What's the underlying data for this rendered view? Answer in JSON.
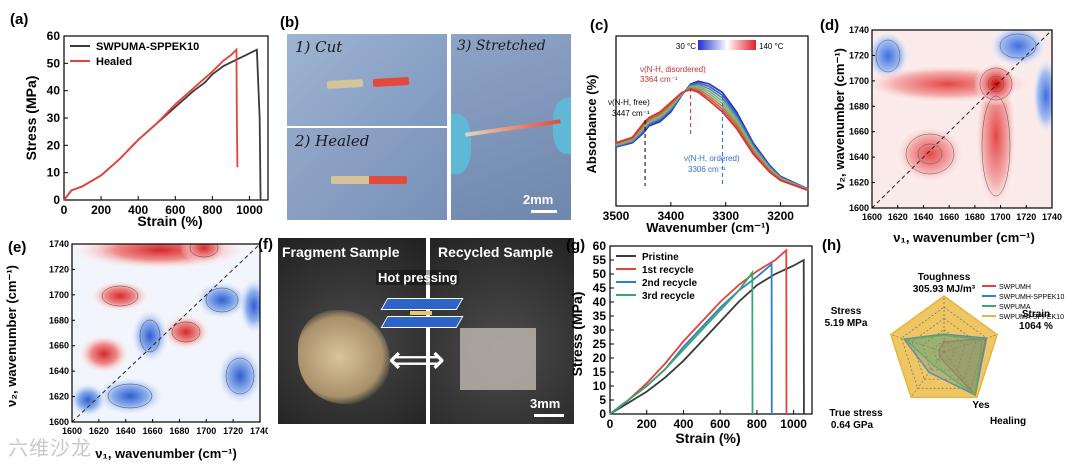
{
  "figure": {
    "panel_labels": [
      "(a)",
      "(b)",
      "(c)",
      "(d)",
      "(e)",
      "(f)",
      "(g)",
      "(h)"
    ],
    "watermark": "六维沙龙"
  },
  "panel_a": {
    "chart_data": {
      "type": "line",
      "xlabel": "Strain (%)",
      "ylabel": "Stress (MPa)",
      "xlim": [
        0,
        1100
      ],
      "ylim": [
        0,
        60
      ],
      "xticks": [
        "0",
        "200",
        "400",
        "600",
        "800",
        "1000"
      ],
      "yticks": [
        "0",
        "10",
        "20",
        "30",
        "40",
        "50",
        "60"
      ],
      "legend_position": "top-left",
      "series": [
        {
          "name": "SWPUMA-SPPEK10",
          "color": "#3a3a3a",
          "x": [
            0,
            40,
            100,
            200,
            300,
            400,
            500,
            600,
            650,
            700,
            720,
            760,
            800,
            860,
            920,
            980,
            1040,
            1055,
            1060
          ],
          "y": [
            0,
            3.5,
            5,
            9,
            15,
            22,
            28,
            34,
            37,
            40,
            41,
            43,
            46,
            49,
            51,
            53,
            55,
            30,
            0
          ]
        },
        {
          "name": "Healed",
          "color": "#e3433b",
          "x": [
            0,
            40,
            100,
            200,
            300,
            400,
            500,
            600,
            700,
            800,
            860,
            900,
            930,
            932,
            935
          ],
          "y": [
            0,
            3.5,
            5,
            9,
            15,
            22,
            28,
            35,
            41,
            47,
            51,
            53,
            55,
            30,
            12
          ]
        }
      ]
    }
  },
  "panel_b": {
    "cut": "1) Cut",
    "healed": "2) Healed",
    "stretched": "3) Stretched",
    "scale": "2mm"
  },
  "panel_c": {
    "chart_data": {
      "type": "line",
      "xlabel": "Wavenumber (cm⁻¹)",
      "ylabel": "Absorbance (%)",
      "xlim": [
        3500,
        3150
      ],
      "xticks": [
        "3500",
        "3400",
        "3300",
        "3200"
      ],
      "colorbar_min": "30 °C",
      "colorbar_max": "140 °C",
      "annotations": [
        {
          "label": "ν(N-H, free)",
          "value": "3447 cm⁻¹"
        },
        {
          "label": "ν(N-H, disordered)",
          "value": "3364 cm⁻¹"
        },
        {
          "label": "ν(N-H, ordered)",
          "value": "3306 cm⁻¹"
        }
      ],
      "series_count": 8,
      "x": [
        3500,
        3470,
        3450,
        3440,
        3420,
        3400,
        3380,
        3364,
        3350,
        3330,
        3306,
        3280,
        3250,
        3220,
        3200,
        3150
      ],
      "y_low_temp": [
        0.35,
        0.38,
        0.45,
        0.5,
        0.53,
        0.6,
        0.72,
        0.8,
        0.82,
        0.8,
        0.74,
        0.6,
        0.38,
        0.22,
        0.14,
        0.05
      ],
      "y_high_temp": [
        0.38,
        0.42,
        0.52,
        0.56,
        0.6,
        0.67,
        0.74,
        0.76,
        0.74,
        0.68,
        0.6,
        0.48,
        0.3,
        0.17,
        0.11,
        0.04
      ]
    }
  },
  "panel_d": {
    "chart_data": {
      "type": "heatmap",
      "xlabel": "ν₁, wavenumber (cm⁻¹)",
      "ylabel": "ν₂, wavenumber (cm⁻¹)",
      "xlim": [
        1600,
        1740
      ],
      "ylim": [
        1600,
        1740
      ],
      "xticks": [
        "1600",
        "1620",
        "1640",
        "1660",
        "1680",
        "1700",
        "1720",
        "1740"
      ],
      "yticks": [
        "1600",
        "1620",
        "1640",
        "1660",
        "1680",
        "1700",
        "1720",
        "1740"
      ]
    }
  },
  "panel_e": {
    "chart_data": {
      "type": "heatmap",
      "xlabel": "ν₁, wavenumber (cm⁻¹)",
      "ylabel": "ν₂, wavenumber (cm⁻¹)",
      "xlim": [
        1600,
        1740
      ],
      "ylim": [
        1600,
        1740
      ],
      "xticks": [
        "1600",
        "1620",
        "1640",
        "1660",
        "1680",
        "1700",
        "1720",
        "1740"
      ],
      "yticks": [
        "1600",
        "1620",
        "1640",
        "1660",
        "1680",
        "1700",
        "1720",
        "1740"
      ]
    }
  },
  "panel_f": {
    "fragment": "Fragment Sample",
    "recycled": "Recycled Sample",
    "hot_pressing": "Hot pressing",
    "scale": "3mm"
  },
  "panel_g": {
    "chart_data": {
      "type": "line",
      "xlabel": "Strain (%)",
      "ylabel": "Stress (MPa)",
      "xlim": [
        0,
        1100
      ],
      "ylim": [
        0,
        60
      ],
      "xticks": [
        "0",
        "200",
        "400",
        "600",
        "800",
        "1000"
      ],
      "yticks": [
        "0",
        "5",
        "10",
        "15",
        "20",
        "25",
        "30",
        "35",
        "40",
        "45",
        "50",
        "55",
        "60"
      ],
      "legend_position": "top-left",
      "series": [
        {
          "name": "Pristine",
          "color": "#3a3a3a",
          "x": [
            0,
            100,
            200,
            300,
            400,
            500,
            600,
            700,
            800,
            900,
            1000,
            1055,
            1056
          ],
          "y": [
            0,
            4,
            8,
            13,
            19,
            26,
            33,
            40,
            46,
            50,
            53,
            55,
            0
          ]
        },
        {
          "name": "1st recycle",
          "color": "#e3433b",
          "x": [
            0,
            100,
            200,
            300,
            400,
            500,
            600,
            700,
            800,
            900,
            960,
            961
          ],
          "y": [
            0,
            5,
            11,
            18,
            26,
            33,
            40,
            46,
            51,
            55,
            58.5,
            0
          ]
        },
        {
          "name": "2nd recycle",
          "color": "#2f7fd0",
          "x": [
            0,
            100,
            200,
            300,
            400,
            500,
            600,
            700,
            800,
            880,
            881
          ],
          "y": [
            0,
            5,
            10,
            16,
            24,
            31,
            38,
            44,
            49,
            53.5,
            0
          ]
        },
        {
          "name": "3rd recycle",
          "color": "#3aa86a",
          "x": [
            0,
            100,
            200,
            300,
            400,
            500,
            600,
            700,
            775,
            776
          ],
          "y": [
            0,
            5,
            10,
            16,
            23,
            30,
            37,
            44,
            50.5,
            0
          ]
        }
      ]
    }
  },
  "panel_h": {
    "chart_data": {
      "type": "radar",
      "axes": [
        {
          "name": "Toughness",
          "max": "305.93 MJ/m³"
        },
        {
          "name": "Strain",
          "max": "1064 %"
        },
        {
          "name": "Healing",
          "max": "Yes"
        },
        {
          "name": "True stress",
          "max": "0.64 GPa"
        },
        {
          "name": "Stress",
          "max": "5.19 MPa"
        }
      ],
      "series": [
        {
          "name": "SWPUMH",
          "color": "#e3433b",
          "values": [
            0.18,
            0.78,
            0.95,
            0.12,
            0.1
          ]
        },
        {
          "name": "SWPUMH-SPPEK10",
          "color": "#2f7fd0",
          "values": [
            0.32,
            0.8,
            0.95,
            0.45,
            0.75
          ]
        },
        {
          "name": "SWPUMA",
          "color": "#3aa86a",
          "values": [
            0.3,
            0.72,
            0.95,
            0.3,
            0.72
          ]
        },
        {
          "name": "SWPUMA-SPPEK10",
          "color": "#e8b43a",
          "values": [
            1.0,
            1.0,
            1.0,
            1.0,
            1.0
          ]
        }
      ]
    }
  }
}
